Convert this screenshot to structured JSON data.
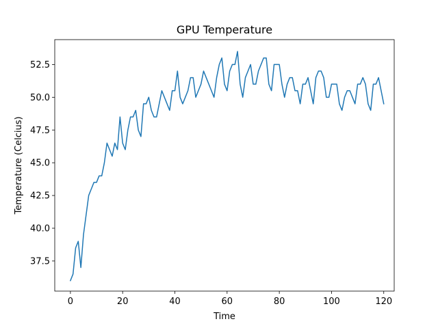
{
  "chart_data": {
    "type": "line",
    "title": "GPU Temperature",
    "xlabel": "Time",
    "ylabel": "Temperature (Celcius)",
    "xlim": [
      -6,
      124
    ],
    "ylim": [
      35.2,
      54.4
    ],
    "x_ticks": [
      0,
      20,
      40,
      60,
      80,
      100,
      120
    ],
    "y_ticks": [
      37.5,
      40.0,
      42.5,
      45.0,
      47.5,
      50.0,
      52.5
    ],
    "x_tick_labels": [
      "0",
      "20",
      "40",
      "60",
      "80",
      "100",
      "120"
    ],
    "y_tick_labels": [
      "37.5",
      "40.0",
      "42.5",
      "45.0",
      "47.5",
      "50.0",
      "52.5"
    ],
    "grid": false,
    "series": [
      {
        "color": "#1f77b4",
        "x": [
          0,
          1,
          2,
          3,
          4,
          5,
          6,
          7,
          8,
          9,
          10,
          11,
          12,
          13,
          14,
          15,
          16,
          17,
          18,
          19,
          20,
          21,
          22,
          23,
          24,
          25,
          26,
          27,
          28,
          29,
          30,
          31,
          32,
          33,
          34,
          35,
          36,
          37,
          38,
          39,
          40,
          41,
          42,
          43,
          44,
          45,
          46,
          47,
          48,
          49,
          50,
          51,
          52,
          53,
          54,
          55,
          56,
          57,
          58,
          59,
          60,
          61,
          62,
          63,
          64,
          65,
          66,
          67,
          68,
          69,
          70,
          71,
          72,
          73,
          74,
          75,
          76,
          77,
          78,
          79,
          80,
          81,
          82,
          83,
          84,
          85,
          86,
          87,
          88,
          89,
          90,
          91,
          92,
          93,
          94,
          95,
          96,
          97,
          98,
          99,
          100,
          101,
          102,
          103,
          104,
          105,
          106,
          107,
          108,
          109,
          110,
          111,
          112,
          113,
          114,
          115,
          116,
          117,
          118,
          119,
          120
        ],
        "y": [
          36.0,
          36.5,
          38.5,
          39.0,
          37.0,
          39.5,
          41.0,
          42.5,
          43.0,
          43.5,
          43.5,
          44.0,
          44.0,
          45.0,
          46.5,
          46.0,
          45.5,
          46.5,
          46.0,
          48.5,
          46.5,
          46.0,
          47.5,
          48.5,
          48.5,
          49.0,
          47.5,
          47.0,
          49.5,
          49.5,
          50.0,
          49.0,
          48.5,
          48.5,
          49.5,
          50.5,
          50.0,
          49.5,
          49.0,
          50.5,
          50.5,
          52.0,
          50.0,
          49.5,
          50.0,
          50.5,
          51.5,
          51.5,
          50.0,
          50.5,
          51.0,
          52.0,
          51.5,
          51.0,
          50.5,
          50.0,
          51.5,
          52.5,
          53.0,
          51.0,
          50.5,
          52.0,
          52.5,
          52.5,
          53.5,
          51.0,
          50.0,
          51.5,
          52.0,
          52.5,
          51.0,
          51.0,
          52.0,
          52.5,
          53.0,
          53.0,
          51.0,
          50.5,
          52.5,
          52.5,
          52.5,
          51.0,
          50.0,
          51.0,
          51.5,
          51.5,
          50.5,
          50.5,
          49.5,
          51.0,
          51.0,
          51.5,
          50.5,
          49.5,
          51.5,
          52.0,
          52.0,
          51.5,
          50.0,
          50.0,
          51.0,
          51.0,
          51.0,
          49.5,
          49.0,
          50.0,
          50.5,
          50.5,
          50.0,
          49.5,
          51.0,
          51.0,
          51.5,
          51.0,
          49.5,
          49.0,
          51.0,
          51.0,
          51.5,
          50.5,
          49.5
        ]
      }
    ]
  }
}
